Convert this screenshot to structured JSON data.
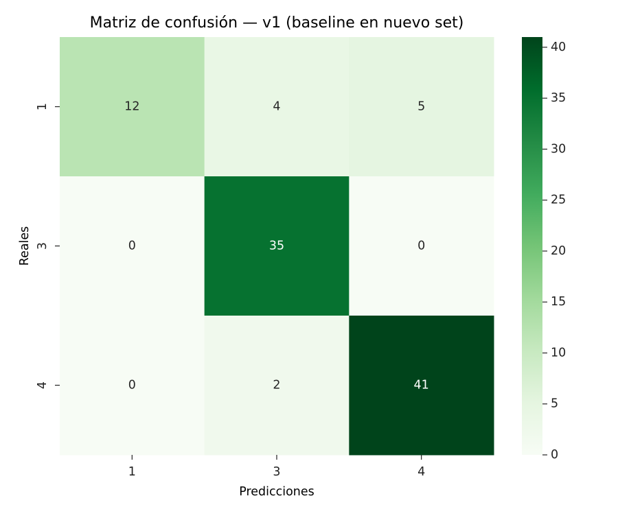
{
  "chart_data": {
    "type": "heatmap",
    "title": "Matriz de confusión — v1 (baseline en nuevo set)",
    "xlabel": "Predicciones",
    "ylabel": "Reales",
    "x_categories": [
      "1",
      "3",
      "4"
    ],
    "y_categories": [
      "1",
      "3",
      "4"
    ],
    "values": [
      [
        12,
        4,
        5
      ],
      [
        0,
        35,
        0
      ],
      [
        0,
        2,
        41
      ]
    ],
    "colorbar": {
      "range": [
        0,
        41
      ],
      "ticks": [
        "0",
        "5",
        "10",
        "15",
        "20",
        "25",
        "30",
        "35",
        "40"
      ],
      "colormap": "Greens",
      "low_color": "#f7fcf5",
      "high_color": "#00441b"
    },
    "annotations": true
  }
}
